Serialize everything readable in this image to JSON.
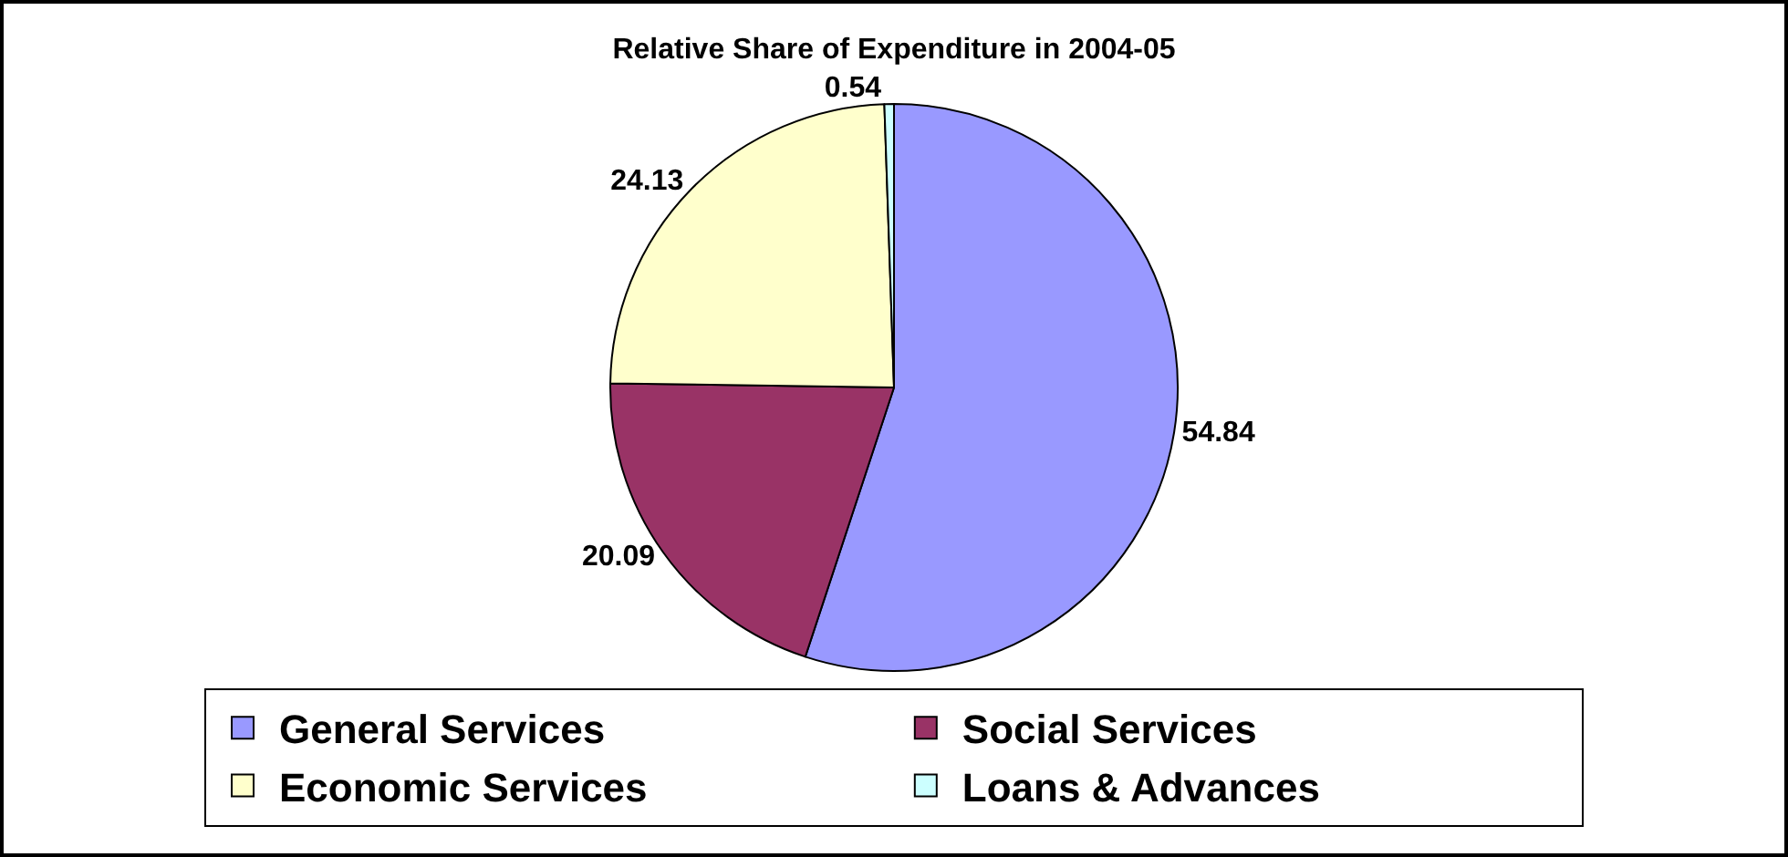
{
  "chart_data": {
    "type": "pie",
    "title": "Relative Share of Expenditure in 2004-05",
    "categories": [
      "General Services",
      "Social Services",
      "Economic Services",
      "Loans & Advances"
    ],
    "values": [
      54.84,
      20.09,
      24.13,
      0.54
    ],
    "colors": [
      "#9999ff",
      "#993366",
      "#ffffcc",
      "#ccffff"
    ],
    "data_labels": true,
    "legend": "bottom"
  }
}
